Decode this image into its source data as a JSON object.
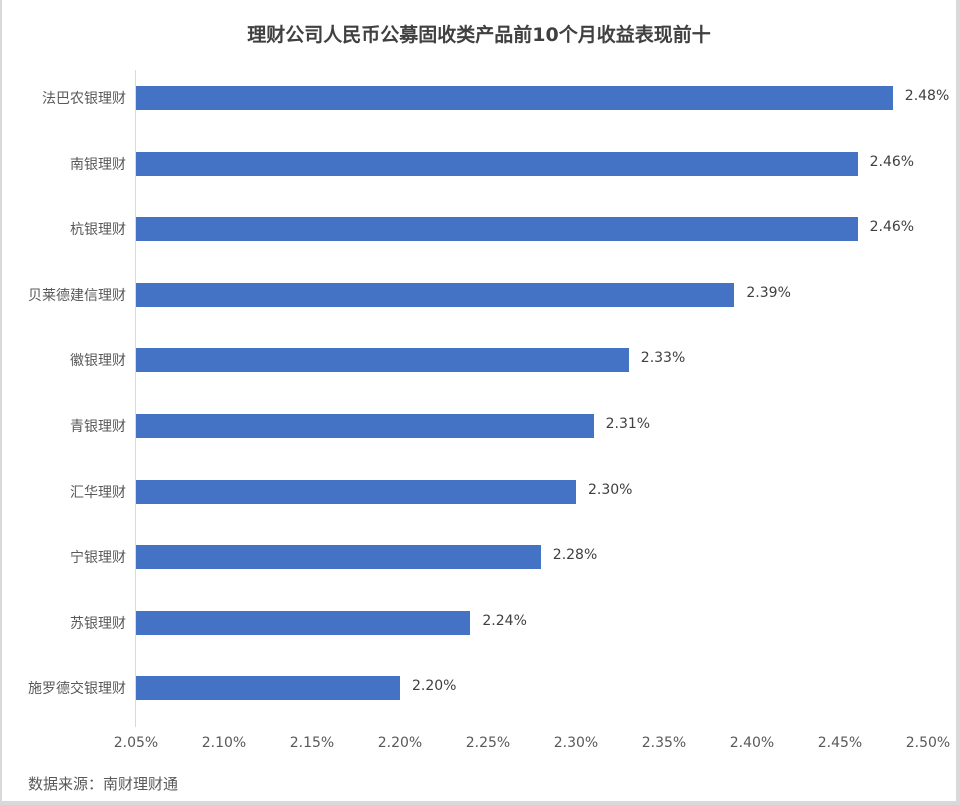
{
  "chart_data": {
    "type": "bar",
    "orientation": "horizontal",
    "title": "理财公司人民币公募固收类产品前10个月收益表现前十",
    "categories": [
      "法巴农银理财",
      "南银理财",
      "杭银理财",
      "贝莱德建信理财",
      "徽银理财",
      "青银理财",
      "汇华理财",
      "宁银理财",
      "苏银理财",
      "施罗德交银理财"
    ],
    "values": [
      2.48,
      2.46,
      2.46,
      2.39,
      2.33,
      2.31,
      2.3,
      2.28,
      2.24,
      2.2
    ],
    "value_labels": [
      "2.48%",
      "2.46%",
      "2.46%",
      "2.39%",
      "2.33%",
      "2.31%",
      "2.30%",
      "2.28%",
      "2.24%",
      "2.20%"
    ],
    "xlabel": "",
    "ylabel": "",
    "xlim": [
      2.05,
      2.5
    ],
    "x_ticks": [
      "2.05%",
      "2.10%",
      "2.15%",
      "2.20%",
      "2.25%",
      "2.30%",
      "2.35%",
      "2.40%",
      "2.45%",
      "2.50%"
    ],
    "grid": false,
    "legend": null,
    "bar_color": "#4472c4",
    "source": "数据来源：南财理财通"
  }
}
